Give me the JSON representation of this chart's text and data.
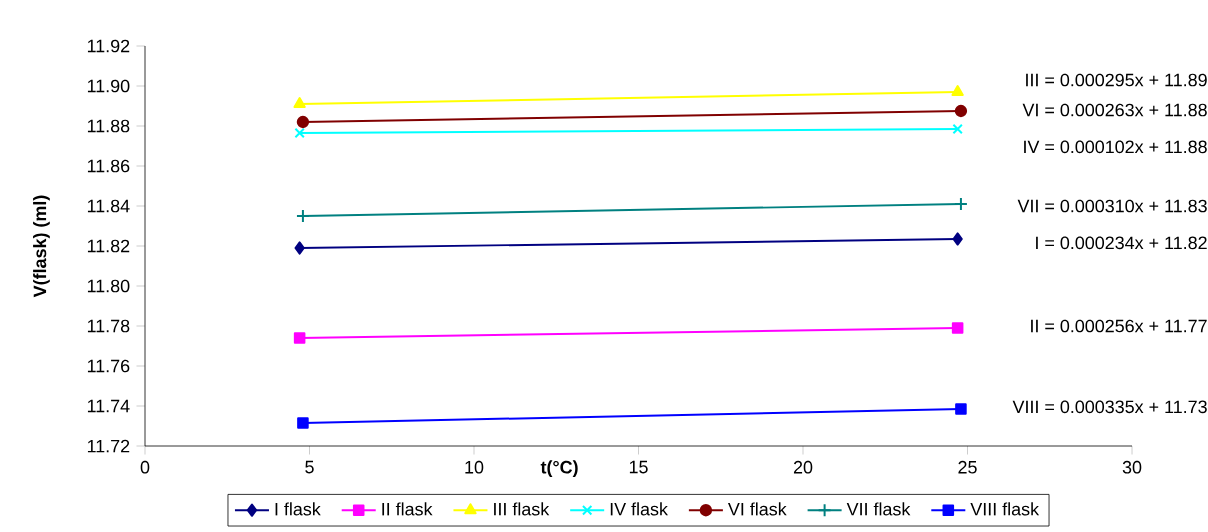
{
  "chart_data": {
    "type": "line",
    "xlabel": "t(°C)",
    "ylabel": "V(flask) (ml)",
    "xlim": [
      0,
      30
    ],
    "xticks": [
      0,
      5,
      10,
      15,
      20,
      25,
      30
    ],
    "ylim": [
      11.72,
      11.92
    ],
    "yticks": [
      {
        "value": 11.72,
        "label": "11.72"
      },
      {
        "value": 11.74,
        "label": "11.74"
      },
      {
        "value": 11.76,
        "label": "11.76"
      },
      {
        "value": 11.78,
        "label": "11.78"
      },
      {
        "value": 11.8,
        "label": "11.80"
      },
      {
        "value": 11.82,
        "label": "11.82"
      },
      {
        "value": 11.84,
        "label": "11.84"
      },
      {
        "value": 11.86,
        "label": "11.86"
      },
      {
        "value": 11.88,
        "label": "11.88"
      },
      {
        "value": 11.9,
        "label": "11.90"
      },
      {
        "value": 11.92,
        "label": "11.92"
      }
    ],
    "grid": false,
    "legend": "bottom",
    "line_style": "solid",
    "series": [
      {
        "name": "I flask",
        "color": "#000080",
        "marker": "diamond",
        "x": [
          4.7,
          24.7
        ],
        "values": [
          11.819,
          11.8235
        ]
      },
      {
        "name": "II flask",
        "color": "#ff00ff",
        "marker": "square",
        "x": [
          4.7,
          24.7
        ],
        "values": [
          11.774,
          11.779
        ]
      },
      {
        "name": "III flask",
        "color": "#ffff00",
        "marker": "triangle",
        "x": [
          4.7,
          24.7
        ],
        "values": [
          11.891,
          11.897
        ]
      },
      {
        "name": "IV flask",
        "color": "#00ffff",
        "marker": "cross",
        "x": [
          4.7,
          24.7
        ],
        "values": [
          11.8765,
          11.8785
        ]
      },
      {
        "name": "VI flask",
        "color": "#800000",
        "marker": "circle",
        "x": [
          4.8,
          24.8
        ],
        "values": [
          11.882,
          11.8875
        ]
      },
      {
        "name": "VII flask",
        "color": "#008080",
        "marker": "plus",
        "x": [
          4.8,
          24.8
        ],
        "values": [
          11.835,
          11.841
        ]
      },
      {
        "name": "VIII flask",
        "color": "#0000ff",
        "marker": "square",
        "x": [
          4.8,
          24.8
        ],
        "values": [
          11.7315,
          11.7385
        ]
      }
    ],
    "annotations": [
      "III = 0.000295x + 11.89",
      "VI = 0.000263x + 11.88",
      "IV = 0.000102x + 11.88",
      "VII = 0.000310x + 11.83",
      "I = 0.000234x + 11.82",
      "II = 0.000256x + 11.77",
      "VIII = 0.000335x + 11.73"
    ]
  }
}
